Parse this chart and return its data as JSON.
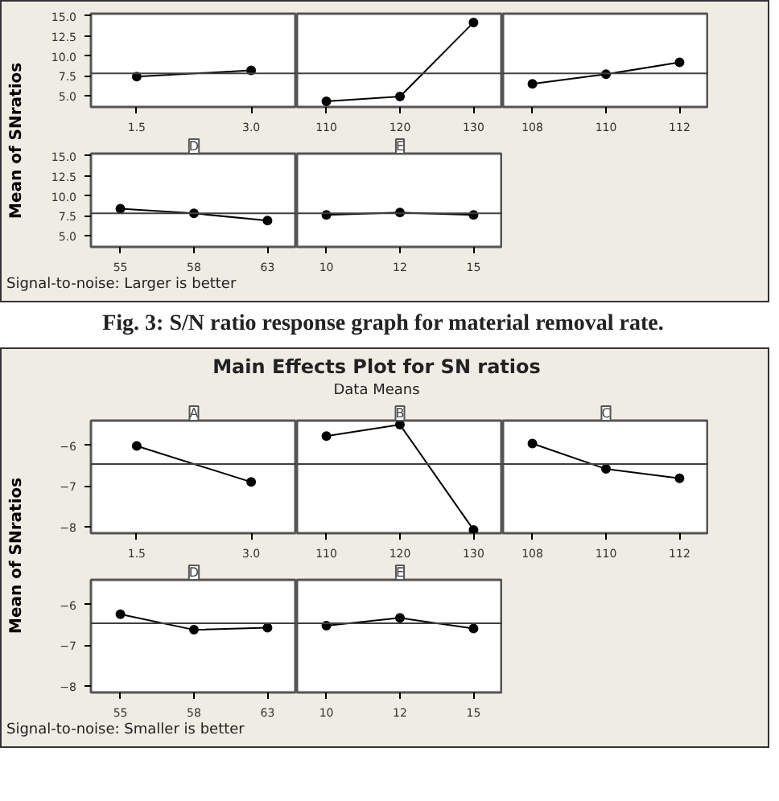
{
  "chart_data": [
    {
      "type": "line",
      "categories": [
        "1.5",
        "3.0"
      ],
      "values": [
        7.4,
        8.2
      ],
      "color": "#000000",
      "marker": "circle",
      "ylim": [
        3.6,
        15.3
      ],
      "yticks": [
        {
          "value": 5,
          "label": "5.0"
        },
        {
          "value": 7.5,
          "label": "7.5"
        },
        {
          "value": 10,
          "label": "10.0"
        },
        {
          "value": 12.5,
          "label": "12.5"
        },
        {
          "value": 15,
          "label": "15.0"
        }
      ],
      "ref_lines": [
        {
          "axis": "y",
          "value": 7.8,
          "color": "#404040"
        }
      ],
      "ylabel": "Mean of SNratios",
      "annotations": [
        "Signal-to-noise: Larger is better",
        "Fig. 3:  S/N ratio response graph for material removal rate."
      ]
    },
    {
      "type": "line",
      "categories": [
        "110",
        "120",
        "130"
      ],
      "values": [
        4.3,
        4.9,
        14.2
      ],
      "color": "#000000",
      "marker": "circle",
      "ylim": [
        3.6,
        15.3
      ],
      "yticks": [
        5,
        7.5,
        10,
        12.5,
        15
      ],
      "ref_lines": [
        {
          "axis": "y",
          "value": 7.8,
          "color": "#404040"
        }
      ],
      "tick_labels": "x"
    },
    {
      "type": "line",
      "categories": [
        "108",
        "110",
        "112"
      ],
      "values": [
        6.5,
        7.7,
        9.2
      ],
      "color": "#000000",
      "marker": "circle",
      "ylim": [
        3.6,
        15.3
      ],
      "yticks": [
        5,
        7.5,
        10,
        12.5,
        15
      ],
      "ref_lines": [
        {
          "axis": "y",
          "value": 7.8,
          "color": "#404040"
        }
      ],
      "tick_labels": "x"
    },
    {
      "type": "line",
      "title": "D",
      "categories": [
        "55",
        "58",
        "63"
      ],
      "values": [
        8.4,
        7.8,
        6.9
      ],
      "color": "#000000",
      "marker": "circle",
      "ylim": [
        3.6,
        15.3
      ],
      "yticks": [
        {
          "value": 5,
          "label": "5.0"
        },
        {
          "value": 7.5,
          "label": "7.5"
        },
        {
          "value": 10,
          "label": "10.0"
        },
        {
          "value": 12.5,
          "label": "12.5"
        },
        {
          "value": 15,
          "label": "15.0"
        }
      ],
      "ref_lines": [
        {
          "axis": "y",
          "value": 7.8,
          "color": "#404040"
        }
      ]
    },
    {
      "type": "line",
      "title": "E",
      "categories": [
        "10",
        "12",
        "15"
      ],
      "values": [
        7.6,
        7.9,
        7.6
      ],
      "color": "#000000",
      "marker": "circle",
      "ylim": [
        3.6,
        15.3
      ],
      "yticks": [
        5,
        7.5,
        10,
        12.5,
        15
      ],
      "ref_lines": [
        {
          "axis": "y",
          "value": 7.8,
          "color": "#404040"
        }
      ],
      "tick_labels": "x"
    },
    {
      "type": "line",
      "title": "A",
      "categories": [
        "1.5",
        "3.0"
      ],
      "values": [
        -6.02,
        -6.9
      ],
      "color": "#000000",
      "marker": "circle",
      "ylim": [
        -8.15,
        -5.4
      ],
      "yticks": [
        -6,
        -7,
        -8
      ],
      "ref_lines": [
        {
          "axis": "y",
          "value": -6.46,
          "color": "#404040"
        }
      ],
      "ylabel": "Mean of SNratios",
      "annotations": [
        "Main Effects Plot for SN ratios",
        "Data Means",
        "Signal-to-noise: Smaller is better"
      ]
    },
    {
      "type": "line",
      "title": "B",
      "categories": [
        "110",
        "120",
        "130"
      ],
      "values": [
        -5.78,
        -5.5,
        -8.07
      ],
      "color": "#000000",
      "marker": "circle",
      "ylim": [
        -8.15,
        -5.4
      ],
      "yticks": [
        -6,
        -7,
        -8
      ],
      "ref_lines": [
        {
          "axis": "y",
          "value": -6.46,
          "color": "#404040"
        }
      ],
      "tick_labels": "x"
    },
    {
      "type": "line",
      "title": "C",
      "categories": [
        "108",
        "110",
        "112"
      ],
      "values": [
        -5.96,
        -6.58,
        -6.81
      ],
      "color": "#000000",
      "marker": "circle",
      "ylim": [
        -8.15,
        -5.4
      ],
      "yticks": [
        -6,
        -7,
        -8
      ],
      "ref_lines": [
        {
          "axis": "y",
          "value": -6.46,
          "color": "#404040"
        }
      ],
      "tick_labels": "x"
    },
    {
      "type": "line",
      "title": "D",
      "categories": [
        "55",
        "58",
        "63"
      ],
      "values": [
        -6.24,
        -6.62,
        -6.57
      ],
      "color": "#000000",
      "marker": "circle",
      "ylim": [
        -8.15,
        -5.4
      ],
      "yticks": [
        -6,
        -7,
        -8
      ],
      "ref_lines": [
        {
          "axis": "y",
          "value": -6.46,
          "color": "#404040"
        }
      ]
    },
    {
      "type": "line",
      "title": "E",
      "categories": [
        "10",
        "12",
        "15"
      ],
      "values": [
        -6.52,
        -6.33,
        -6.59
      ],
      "color": "#000000",
      "marker": "circle",
      "ylim": [
        -8.15,
        -5.4
      ],
      "yticks": [
        -6,
        -7,
        -8
      ],
      "ref_lines": [
        {
          "axis": "y",
          "value": -6.46,
          "color": "#404040"
        }
      ],
      "tick_labels": "x"
    }
  ]
}
